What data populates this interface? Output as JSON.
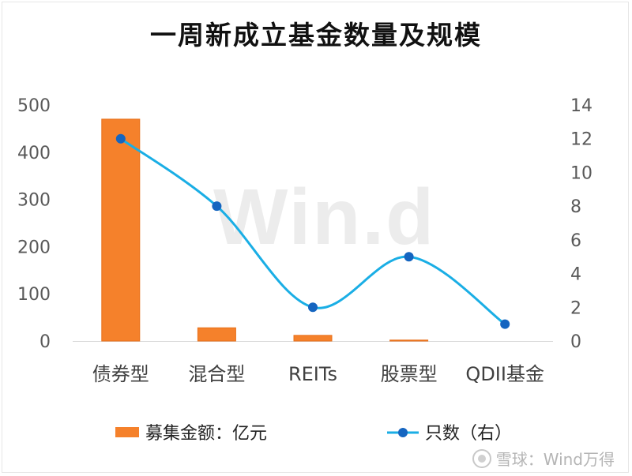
{
  "chart_data": {
    "type": "bar",
    "title": "一周新成立基金数量及规模",
    "categories": [
      "债券型",
      "混合型",
      "REITs",
      "股票型",
      "QDII基金"
    ],
    "series": [
      {
        "name": "募集金额：亿元",
        "kind": "bar",
        "axis": "left",
        "color": "#f5812b",
        "values": [
          470,
          28,
          12,
          2,
          0
        ]
      },
      {
        "name": "只数（右）",
        "kind": "line",
        "axis": "right",
        "color": "#1aaee5",
        "marker_color": "#1565c0",
        "values": [
          12,
          8,
          2,
          5,
          1
        ]
      }
    ],
    "y_left": {
      "min": 0,
      "max": 500,
      "ticks": [
        0,
        100,
        200,
        300,
        400,
        500
      ]
    },
    "y_right": {
      "min": 0,
      "max": 14,
      "ticks": [
        0,
        2,
        4,
        6,
        8,
        10,
        12,
        14
      ]
    },
    "grid": false,
    "legend": "bottom"
  },
  "watermark": "Win.d",
  "footer": {
    "text": "雪球：Wind万得",
    "icon": "snowball-logo-icon"
  }
}
